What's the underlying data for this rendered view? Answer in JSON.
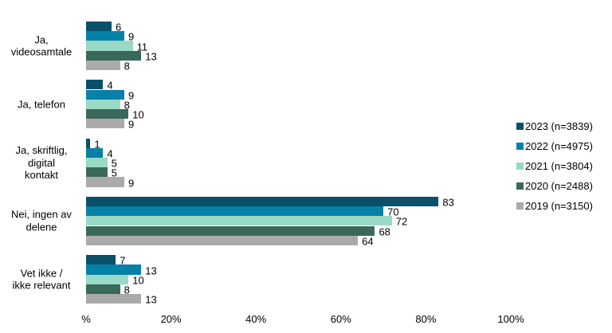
{
  "chart_data": {
    "type": "bar",
    "orientation": "horizontal",
    "title": "",
    "xlabel": "%",
    "ylabel": "",
    "xlim": [
      0,
      100
    ],
    "grid": false,
    "legend_position": "right",
    "x_ticks": [
      {
        "value": 0,
        "label": "%"
      },
      {
        "value": 20,
        "label": "20%"
      },
      {
        "value": 40,
        "label": "40%"
      },
      {
        "value": 60,
        "label": "60%"
      },
      {
        "value": 80,
        "label": "80%"
      },
      {
        "value": 100,
        "label": "100%"
      }
    ],
    "categories": [
      "Ja, videosamtale",
      "Ja, telefon",
      "Ja, skriftlig, digital kontakt",
      "Nei, ingen av delene",
      "Vet ikke / ikke relevant"
    ],
    "category_display": [
      "Ja,\nvideosamtale",
      "Ja, telefon",
      "Ja, skriftlig,\ndigital\nkontakt",
      "Nei, ingen av\ndelene",
      "Vet ikke /\nikke relevant"
    ],
    "series": [
      {
        "name": "2023 (n=3839)",
        "color": "#0b506b",
        "values": [
          6,
          4,
          1,
          83,
          7
        ]
      },
      {
        "name": "2022 (n=4975)",
        "color": "#0581a7",
        "values": [
          9,
          9,
          4,
          70,
          13
        ]
      },
      {
        "name": "2021 (n=3804)",
        "color": "#99d9c6",
        "values": [
          11,
          8,
          5,
          72,
          10
        ]
      },
      {
        "name": "2020 (n=2488)",
        "color": "#3a685a",
        "values": [
          13,
          10,
          5,
          68,
          8
        ]
      },
      {
        "name": "2019 (n=3150)",
        "color": "#aaaaaa",
        "values": [
          8,
          9,
          9,
          64,
          13
        ]
      }
    ]
  }
}
